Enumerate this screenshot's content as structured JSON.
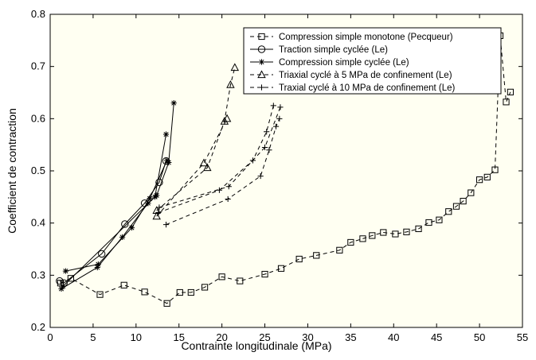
{
  "chart_data": {
    "type": "line",
    "xlabel": "Contrainte longitudinale  (MPa)",
    "ylabel": "Coefficient de contraction",
    "xlim": [
      0,
      55
    ],
    "ylim": [
      0.2,
      0.8
    ],
    "xticks": [
      "0",
      "5",
      "10",
      "15",
      "20",
      "25",
      "30",
      "35",
      "40",
      "45",
      "50",
      "55"
    ],
    "yticks": [
      "0.2",
      "0.3",
      "0.4",
      "0.5",
      "0.6",
      "0.7",
      "0.8"
    ],
    "grid": false,
    "legend_position": "top-right",
    "plot_background": "#fffff2",
    "series": [
      {
        "name": "Compression simple monotone (Pecqueur)",
        "line_style": "dashed",
        "marker": "square",
        "segments": [
          [
            [
              1.2,
              0.285
            ],
            [
              2.4,
              0.294
            ],
            [
              5.8,
              0.263
            ],
            [
              8.6,
              0.281
            ],
            [
              11.0,
              0.268
            ],
            [
              13.6,
              0.246
            ],
            [
              15.1,
              0.267
            ],
            [
              16.4,
              0.267
            ],
            [
              18.0,
              0.277
            ],
            [
              20.0,
              0.297
            ],
            [
              22.1,
              0.289
            ],
            [
              25.0,
              0.302
            ],
            [
              26.9,
              0.313
            ],
            [
              29.0,
              0.331
            ],
            [
              31.0,
              0.338
            ],
            [
              33.7,
              0.348
            ],
            [
              35.0,
              0.363
            ],
            [
              36.4,
              0.37
            ],
            [
              37.5,
              0.376
            ],
            [
              38.8,
              0.382
            ],
            [
              40.2,
              0.379
            ],
            [
              41.5,
              0.383
            ],
            [
              42.9,
              0.389
            ],
            [
              44.1,
              0.401
            ],
            [
              45.3,
              0.406
            ],
            [
              46.4,
              0.422
            ],
            [
              47.3,
              0.432
            ],
            [
              48.1,
              0.442
            ],
            [
              49.0,
              0.458
            ],
            [
              50.0,
              0.483
            ],
            [
              50.9,
              0.488
            ],
            [
              51.8,
              0.502
            ],
            [
              52.4,
              0.759
            ],
            [
              53.1,
              0.632
            ],
            [
              53.6,
              0.651
            ]
          ]
        ]
      },
      {
        "name": "Traction simple cyclée (Le)",
        "line_style": "solid",
        "marker": "circle",
        "segments": [
          [
            [
              1.1,
              0.289
            ],
            [
              1.6,
              0.285
            ],
            [
              6.0,
              0.341
            ],
            [
              8.7,
              0.398
            ],
            [
              11.0,
              0.438
            ],
            [
              12.7,
              0.478
            ],
            [
              13.5,
              0.519
            ]
          ]
        ]
      },
      {
        "name": "Compression simple cyclée (Le)",
        "line_style": "solid",
        "marker": "star",
        "segments": [
          [
            [
              1.3,
              0.274
            ],
            [
              5.5,
              0.315
            ],
            [
              8.4,
              0.373
            ],
            [
              11.4,
              0.438
            ],
            [
              12.4,
              0.453
            ],
            [
              13.8,
              0.516
            ],
            [
              14.4,
              0.63
            ]
          ],
          [
            [
              1.8,
              0.308
            ],
            [
              5.6,
              0.321
            ],
            [
              9.5,
              0.391
            ],
            [
              11.6,
              0.447
            ],
            [
              13.6,
              0.52
            ]
          ],
          [
            [
              1.5,
              0.279
            ],
            [
              12.2,
              0.45
            ],
            [
              13.5,
              0.57
            ]
          ]
        ]
      },
      {
        "name": "Triaxial  cyclé à 5 MPa de confinement (Le)",
        "line_style": "dashed",
        "marker": "triangle",
        "segments": [
          [
            [
              12.4,
              0.424
            ],
            [
              18.3,
              0.506
            ],
            [
              20.3,
              0.595
            ],
            [
              21.0,
              0.665
            ],
            [
              21.5,
              0.698
            ]
          ],
          [
            [
              12.4,
              0.413
            ],
            [
              17.9,
              0.515
            ],
            [
              20.6,
              0.6
            ]
          ]
        ]
      },
      {
        "name": "Traxial  cyclé à 10 MPa de confinement (Le)",
        "line_style": "dashed",
        "marker": "plus",
        "segments": [
          [
            [
              13.5,
              0.397
            ],
            [
              20.7,
              0.446
            ],
            [
              24.5,
              0.49
            ],
            [
              25.5,
              0.54
            ],
            [
              26.3,
              0.585
            ],
            [
              26.7,
              0.6
            ]
          ],
          [
            [
              12.6,
              0.42
            ],
            [
              19.7,
              0.463
            ],
            [
              23.6,
              0.52
            ],
            [
              25.2,
              0.575
            ],
            [
              26.0,
              0.625
            ]
          ],
          [
            [
              12.7,
              0.43
            ],
            [
              20.8,
              0.47
            ],
            [
              25.0,
              0.545
            ],
            [
              26.8,
              0.622
            ]
          ]
        ]
      }
    ]
  }
}
